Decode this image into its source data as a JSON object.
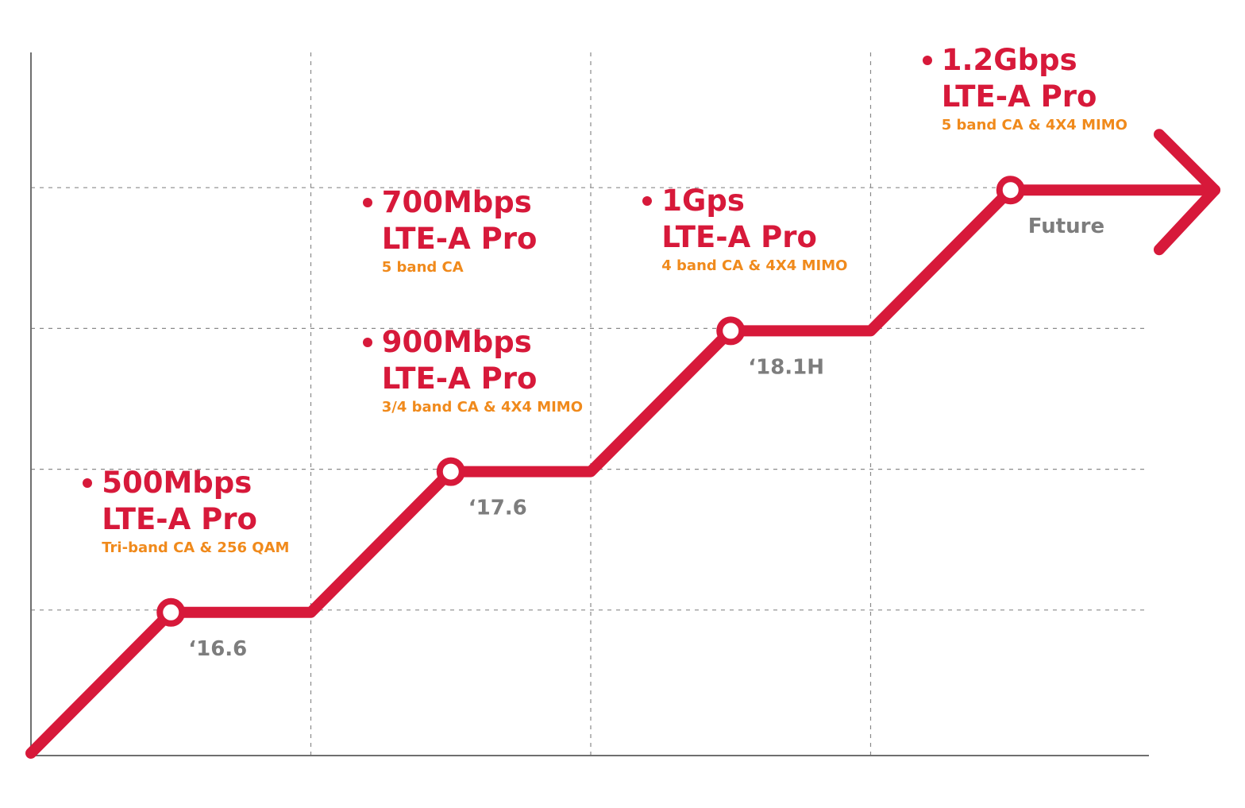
{
  "colors": {
    "track": "#d7193a",
    "speed_text": "#d7193a",
    "spec_text": "#f08a1c",
    "date_text": "#7d7d7d",
    "axis": "#6f6f6f",
    "grid": "#8a8a8a"
  },
  "chart_data": {
    "type": "line",
    "title": "",
    "xlabel": "",
    "ylabel": "",
    "grid": true,
    "legend": "none",
    "categories": [
      "'16.6",
      "'17.6",
      "'18.1H",
      "Future"
    ],
    "series": [
      {
        "values": [
          1,
          2,
          3,
          4
        ]
      }
    ],
    "ylim": [
      0,
      5
    ],
    "milestones": [
      {
        "date": "‘16.6",
        "level": 1,
        "entries": [
          {
            "speed": "500Mbps",
            "tech": "LTE-A Pro",
            "spec": "Tri-band CA & 256 QAM"
          }
        ]
      },
      {
        "date": "‘17.6",
        "level": 2,
        "entries": [
          {
            "speed": "700Mbps",
            "tech": "LTE-A Pro",
            "spec": "5 band CA"
          },
          {
            "speed": "900Mbps",
            "tech": "LTE-A Pro",
            "spec": "3/4 band CA & 4X4 MIMO"
          }
        ]
      },
      {
        "date": "‘18.1H",
        "level": 3,
        "entries": [
          {
            "speed": "1Gps",
            "tech": "LTE-A Pro",
            "spec": "4 band CA & 4X4 MIMO"
          }
        ]
      },
      {
        "date": "Future",
        "level": 4,
        "entries": [
          {
            "speed": "1.2Gbps",
            "tech": "LTE-A Pro",
            "spec": "5 band CA & 4X4 MIMO"
          }
        ]
      }
    ]
  }
}
